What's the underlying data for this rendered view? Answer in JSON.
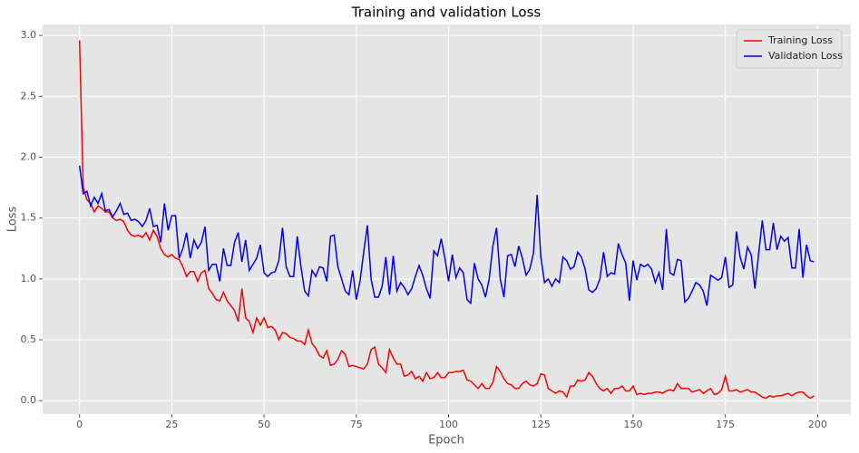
{
  "chart_data": {
    "type": "line",
    "title": "Training and validation Loss",
    "xlabel": "Epoch",
    "ylabel": "Loss",
    "x": [
      0,
      1,
      2,
      3,
      4,
      5,
      6,
      7,
      8,
      9,
      10,
      11,
      12,
      13,
      14,
      15,
      16,
      17,
      18,
      19,
      20,
      21,
      22,
      23,
      24,
      25,
      26,
      27,
      28,
      29,
      30,
      31,
      32,
      33,
      34,
      35,
      36,
      37,
      38,
      39,
      40,
      41,
      42,
      43,
      44,
      45,
      46,
      47,
      48,
      49,
      50,
      51,
      52,
      53,
      54,
      55,
      56,
      57,
      58,
      59,
      60,
      61,
      62,
      63,
      64,
      65,
      66,
      67,
      68,
      69,
      70,
      71,
      72,
      73,
      74,
      75,
      76,
      77,
      78,
      79,
      80,
      81,
      82,
      83,
      84,
      85,
      86,
      87,
      88,
      89,
      90,
      91,
      92,
      93,
      94,
      95,
      96,
      97,
      98,
      99,
      100,
      101,
      102,
      103,
      104,
      105,
      106,
      107,
      108,
      109,
      110,
      111,
      112,
      113,
      114,
      115,
      116,
      117,
      118,
      119,
      120,
      121,
      122,
      123,
      124,
      125,
      126,
      127,
      128,
      129,
      130,
      131,
      132,
      133,
      134,
      135,
      136,
      137,
      138,
      139,
      140,
      141,
      142,
      143,
      144,
      145,
      146,
      147,
      148,
      149,
      150,
      151,
      152,
      153,
      154,
      155,
      156,
      157,
      158,
      159,
      160,
      161,
      162,
      163,
      164,
      165,
      166,
      167,
      168,
      169,
      170,
      171,
      172,
      173,
      174,
      175,
      176,
      177,
      178,
      179,
      180,
      181,
      182,
      183,
      184,
      185,
      186,
      187,
      188,
      189,
      190,
      191,
      192,
      193,
      194,
      195,
      196,
      197,
      198,
      199
    ],
    "series": [
      {
        "name": "Training Loss",
        "color": "#ff0000",
        "values": [
          2.96,
          1.75,
          1.65,
          1.62,
          1.55,
          1.6,
          1.58,
          1.55,
          1.55,
          1.5,
          1.48,
          1.49,
          1.47,
          1.4,
          1.36,
          1.35,
          1.36,
          1.34,
          1.38,
          1.32,
          1.4,
          1.35,
          1.25,
          1.2,
          1.18,
          1.2,
          1.17,
          1.16,
          1.1,
          1.02,
          1.06,
          1.06,
          0.98,
          1.05,
          1.07,
          0.92,
          0.88,
          0.83,
          0.82,
          0.89,
          0.82,
          0.78,
          0.74,
          0.65,
          0.92,
          0.68,
          0.65,
          0.56,
          0.68,
          0.62,
          0.68,
          0.6,
          0.61,
          0.58,
          0.5,
          0.56,
          0.55,
          0.52,
          0.51,
          0.49,
          0.49,
          0.46,
          0.58,
          0.47,
          0.43,
          0.37,
          0.35,
          0.41,
          0.29,
          0.3,
          0.34,
          0.41,
          0.38,
          0.28,
          0.29,
          0.28,
          0.27,
          0.26,
          0.3,
          0.42,
          0.44,
          0.3,
          0.27,
          0.23,
          0.42,
          0.35,
          0.3,
          0.3,
          0.2,
          0.21,
          0.24,
          0.18,
          0.2,
          0.16,
          0.23,
          0.18,
          0.19,
          0.23,
          0.19,
          0.19,
          0.23,
          0.23,
          0.24,
          0.24,
          0.25,
          0.17,
          0.16,
          0.13,
          0.1,
          0.14,
          0.1,
          0.1,
          0.15,
          0.28,
          0.24,
          0.18,
          0.14,
          0.13,
          0.1,
          0.1,
          0.14,
          0.16,
          0.13,
          0.12,
          0.14,
          0.22,
          0.21,
          0.1,
          0.08,
          0.06,
          0.08,
          0.07,
          0.03,
          0.12,
          0.12,
          0.17,
          0.16,
          0.17,
          0.23,
          0.2,
          0.14,
          0.1,
          0.08,
          0.1,
          0.06,
          0.1,
          0.1,
          0.12,
          0.08,
          0.08,
          0.12,
          0.05,
          0.06,
          0.05,
          0.06,
          0.06,
          0.07,
          0.07,
          0.06,
          0.08,
          0.09,
          0.08,
          0.14,
          0.1,
          0.1,
          0.1,
          0.07,
          0.08,
          0.09,
          0.06,
          0.08,
          0.1,
          0.05,
          0.06,
          0.09,
          0.2,
          0.08,
          0.08,
          0.09,
          0.07,
          0.08,
          0.09,
          0.07,
          0.07,
          0.05,
          0.03,
          0.02,
          0.04,
          0.03,
          0.04,
          0.04,
          0.05,
          0.06,
          0.04,
          0.06,
          0.07,
          0.07,
          0.04,
          0.02,
          0.04
        ]
      },
      {
        "name": "Validation Loss",
        "color": "#0000ff",
        "values": [
          1.93,
          1.7,
          1.72,
          1.6,
          1.67,
          1.62,
          1.7,
          1.56,
          1.57,
          1.51,
          1.56,
          1.62,
          1.53,
          1.54,
          1.48,
          1.49,
          1.47,
          1.43,
          1.48,
          1.58,
          1.43,
          1.44,
          1.3,
          1.62,
          1.4,
          1.52,
          1.52,
          1.17,
          1.25,
          1.38,
          1.17,
          1.32,
          1.25,
          1.3,
          1.43,
          1.07,
          1.12,
          1.12,
          0.98,
          1.25,
          1.11,
          1.11,
          1.3,
          1.38,
          1.14,
          1.32,
          1.07,
          1.12,
          1.17,
          1.28,
          1.05,
          1.02,
          1.05,
          1.06,
          1.15,
          1.42,
          1.1,
          1.02,
          1.02,
          1.35,
          1.1,
          0.9,
          0.86,
          1.07,
          1.02,
          1.1,
          1.09,
          0.98,
          1.35,
          1.36,
          1.1,
          1.0,
          0.9,
          0.87,
          1.07,
          0.83,
          0.98,
          1.22,
          1.44,
          1.0,
          0.85,
          0.85,
          0.94,
          1.18,
          0.87,
          1.19,
          0.9,
          0.97,
          0.93,
          0.87,
          0.92,
          1.02,
          1.11,
          1.03,
          0.92,
          0.84,
          1.23,
          1.19,
          1.33,
          1.17,
          0.98,
          1.2,
          1.01,
          1.09,
          1.05,
          0.83,
          0.8,
          1.13,
          1.0,
          0.95,
          0.85,
          1.0,
          1.27,
          1.42,
          1.0,
          0.85,
          1.19,
          1.2,
          1.1,
          1.27,
          1.17,
          1.03,
          1.08,
          1.21,
          1.69,
          1.18,
          0.97,
          1.0,
          0.94,
          1.0,
          0.97,
          1.18,
          1.15,
          1.08,
          1.1,
          1.22,
          1.18,
          1.08,
          0.91,
          0.89,
          0.92,
          1.0,
          1.22,
          1.02,
          1.05,
          1.04,
          1.29,
          1.2,
          1.13,
          0.82,
          1.15,
          0.99,
          1.12,
          1.1,
          1.12,
          1.08,
          0.97,
          1.05,
          0.91,
          1.41,
          1.05,
          1.03,
          1.16,
          1.15,
          0.81,
          0.84,
          0.9,
          0.97,
          0.95,
          0.9,
          0.78,
          1.03,
          1.01,
          0.99,
          1.01,
          1.18,
          0.93,
          0.95,
          1.39,
          1.18,
          1.08,
          1.26,
          1.2,
          0.92,
          1.2,
          1.48,
          1.24,
          1.24,
          1.46,
          1.24,
          1.35,
          1.31,
          1.34,
          1.09,
          1.09,
          1.41,
          1.01,
          1.28,
          1.15,
          1.14
        ]
      }
    ],
    "xlim": [
      -10,
      209
    ],
    "ylim": [
      -0.11,
      3.09
    ],
    "xticks": [
      0,
      25,
      50,
      75,
      100,
      125,
      150,
      175,
      200
    ],
    "yticks": [
      {
        "value": 0,
        "label": "0.0"
      },
      {
        "value": 0.5,
        "label": "0.5"
      },
      {
        "value": 1,
        "label": "1.0"
      },
      {
        "value": 1.5,
        "label": "1.5"
      },
      {
        "value": 2,
        "label": "2.0"
      },
      {
        "value": 2.5,
        "label": "2.5"
      },
      {
        "value": 3,
        "label": "3.0"
      }
    ],
    "grid": true,
    "legend": "upper right"
  }
}
